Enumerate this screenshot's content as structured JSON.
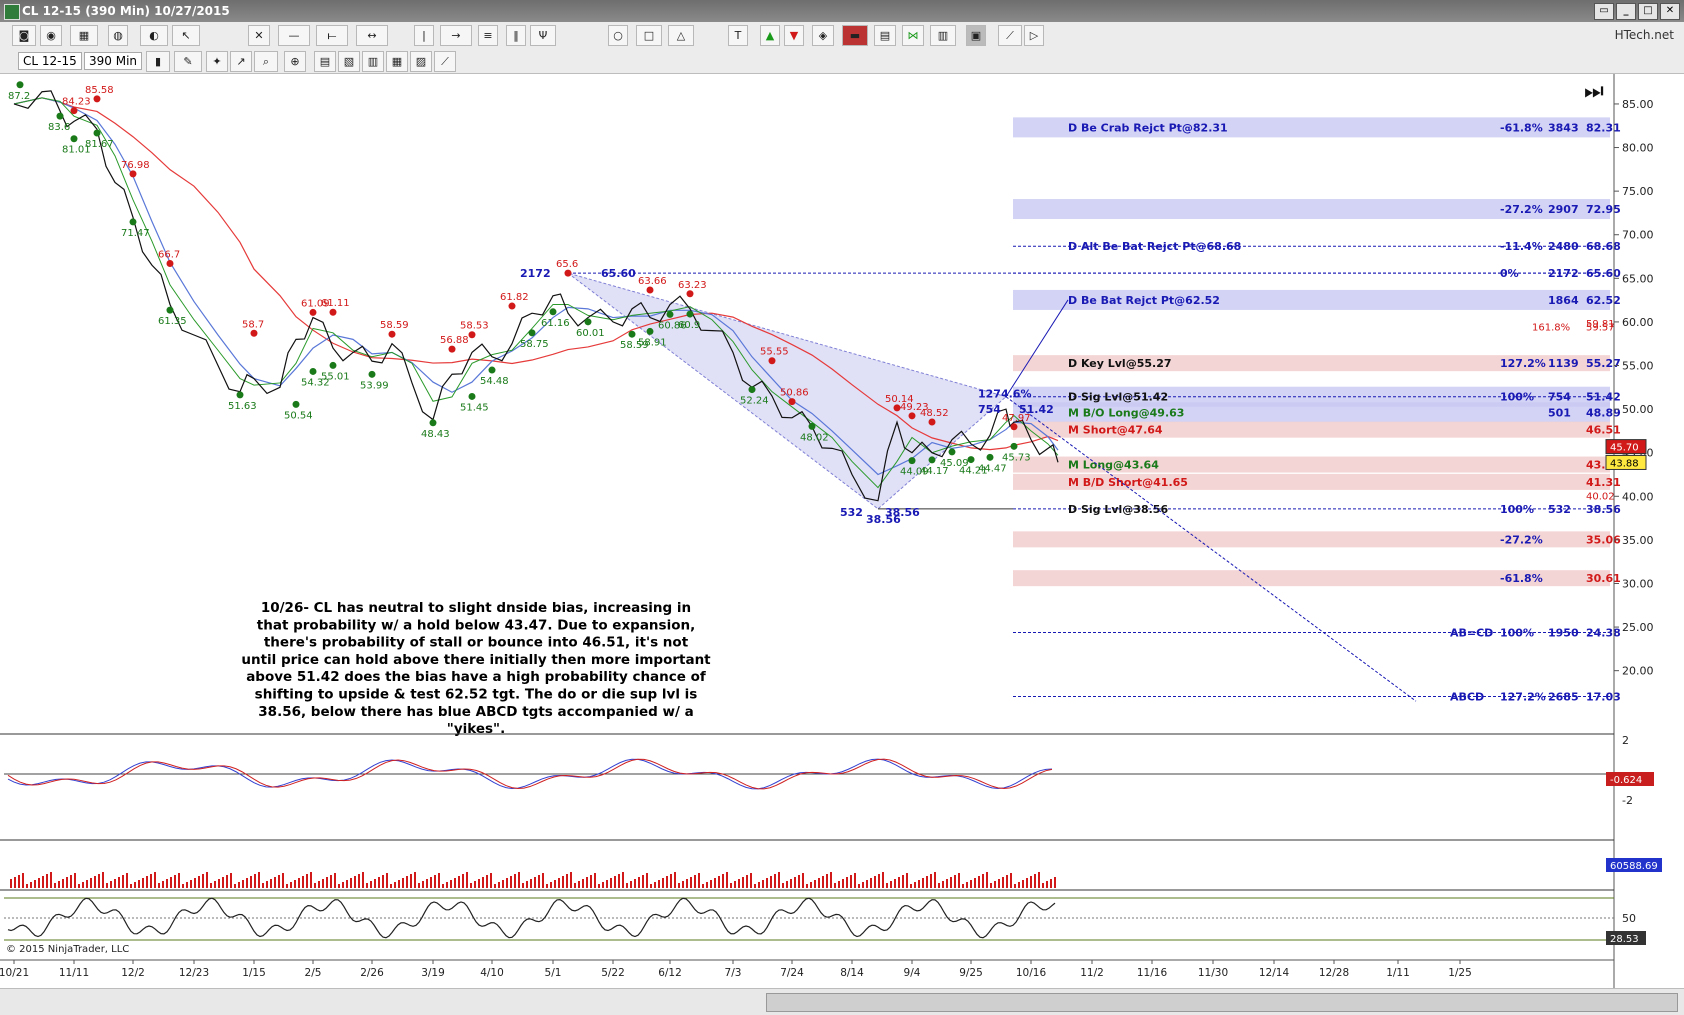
{
  "window": {
    "title": "CL 12-15 (390 Min)  10/27/2015"
  },
  "toolbar": {
    "brand": "HTech.net",
    "instrument": "CL 12-15",
    "period": "390 Min"
  },
  "colors": {
    "blue_zone": "#c8c8f2",
    "red_zone": "#f3d0d0",
    "blue_text": "#1919b4",
    "red_text": "#d21919",
    "green_text": "#1a7a1a",
    "ma_red": "#e63a3a",
    "ma_blue": "#5a78d8",
    "ma_green": "#2a9a2a"
  },
  "chart_data": {
    "type": "line",
    "title": "",
    "ylim": [
      15,
      88
    ],
    "y_ticks": [
      "85.00",
      "80.00",
      "75.00",
      "70.00",
      "65.00",
      "60.00",
      "55.00",
      "50.00",
      "45.00",
      "40.00",
      "35.00",
      "30.00",
      "25.00",
      "20.00"
    ],
    "x_ticks": [
      "10/21",
      "11/11",
      "12/2",
      "12/23",
      "1/15",
      "2/5",
      "2/26",
      "3/19",
      "4/10",
      "5/1",
      "5/22",
      "6/12",
      "7/3",
      "7/24",
      "8/14",
      "9/4",
      "9/25",
      "10/16",
      "11/2",
      "11/16",
      "11/30",
      "12/14",
      "12/28",
      "1/11",
      "1/25"
    ],
    "price_path": [
      {
        "x": "10/21",
        "y": 85.0
      },
      {
        "x": "10/28",
        "y": 86.4
      },
      {
        "x": "11/4",
        "y": 84.2
      },
      {
        "x": "11/11",
        "y": 83.0
      },
      {
        "x": "11/18",
        "y": 82.1
      },
      {
        "x": "11/25",
        "y": 76.0
      },
      {
        "x": "12/2",
        "y": 72.0
      },
      {
        "x": "12/9",
        "y": 66.5
      },
      {
        "x": "12/16",
        "y": 62.0
      },
      {
        "x": "12/23",
        "y": 58.5
      },
      {
        "x": "1/1",
        "y": 55.0
      },
      {
        "x": "1/8",
        "y": 52.0
      },
      {
        "x": "1/15",
        "y": 53.5
      },
      {
        "x": "1/23",
        "y": 52.5
      },
      {
        "x": "1/30",
        "y": 58.0
      },
      {
        "x": "2/5",
        "y": 60.5
      },
      {
        "x": "2/12",
        "y": 57.0
      },
      {
        "x": "2/19",
        "y": 56.5
      },
      {
        "x": "2/26",
        "y": 55.5
      },
      {
        "x": "3/5",
        "y": 57.5
      },
      {
        "x": "3/12",
        "y": 53.0
      },
      {
        "x": "3/19",
        "y": 48.8
      },
      {
        "x": "3/26",
        "y": 54.0
      },
      {
        "x": "4/2",
        "y": 56.5
      },
      {
        "x": "4/10",
        "y": 56.0
      },
      {
        "x": "4/17",
        "y": 57.5
      },
      {
        "x": "4/24",
        "y": 61.0
      },
      {
        "x": "5/1",
        "y": 63.0
      },
      {
        "x": "5/8",
        "y": 61.0
      },
      {
        "x": "5/15",
        "y": 60.5
      },
      {
        "x": "5/22",
        "y": 60.0
      },
      {
        "x": "5/29",
        "y": 61.5
      },
      {
        "x": "6/5",
        "y": 60.5
      },
      {
        "x": "6/12",
        "y": 62.0
      },
      {
        "x": "6/19",
        "y": 61.5
      },
      {
        "x": "6/26",
        "y": 59.0
      },
      {
        "x": "7/3",
        "y": 56.5
      },
      {
        "x": "7/10",
        "y": 52.5
      },
      {
        "x": "7/17",
        "y": 51.5
      },
      {
        "x": "7/24",
        "y": 49.0
      },
      {
        "x": "7/31",
        "y": 48.0
      },
      {
        "x": "8/7",
        "y": 45.5
      },
      {
        "x": "8/14",
        "y": 42.5
      },
      {
        "x": "8/21",
        "y": 39.5
      },
      {
        "x": "8/28",
        "y": 48.5
      },
      {
        "x": "9/4",
        "y": 45.0
      },
      {
        "x": "9/11",
        "y": 45.0
      },
      {
        "x": "9/18",
        "y": 46.5
      },
      {
        "x": "9/25",
        "y": 46.0
      },
      {
        "x": "10/2",
        "y": 47.0
      },
      {
        "x": "10/9",
        "y": 50.0
      },
      {
        "x": "10/12",
        "y": 48.5
      },
      {
        "x": "10/16",
        "y": 46.5
      },
      {
        "x": "10/23",
        "y": 45.5
      },
      {
        "x": "10/27",
        "y": 43.9
      }
    ],
    "levels": [
      {
        "label": "D Be Crab Rejct Pt@82.31",
        "pct": "-61.8%",
        "bars": "3843",
        "value": "82.31",
        "y": 82.31,
        "zone": "blue",
        "line": false
      },
      {
        "label": "",
        "pct": "-27.2%",
        "bars": "2907",
        "value": "72.95",
        "y": 72.95,
        "zone": "blue",
        "line": false
      },
      {
        "label": "D Alt Be Bat Rejct Pt@68.68",
        "pct": "-11.4%",
        "bars": "2480",
        "value": "68.68",
        "y": 68.68,
        "zone": "none",
        "line": true
      },
      {
        "label": "",
        "pct": "0%",
        "bars": "2172",
        "value": "65.60",
        "y": 65.6,
        "zone": "none",
        "line": true
      },
      {
        "label": "D Be Bat Rejct Pt@62.52",
        "pct": "",
        "bars": "1864",
        "value": "62.52",
        "y": 62.52,
        "zone": "blue",
        "line": false
      },
      {
        "label": "D Key Lvl@55.27",
        "pct": "127.2%",
        "bars": "1139",
        "value": "55.27",
        "y": 55.27,
        "zone": "red",
        "line": false
      },
      {
        "label": "D Sig Lvl@51.42",
        "pct": "100%",
        "bars": "754",
        "value": "51.42",
        "y": 51.42,
        "zone": "blue",
        "line": true
      },
      {
        "label": "M B/O Long@49.63",
        "pct": "",
        "bars": "501",
        "value": "48.89",
        "y": 49.63,
        "zone": "blue",
        "line": false
      },
      {
        "label": "M Short@47.64",
        "pct": "",
        "bars": "",
        "value": "46.51",
        "y": 47.64,
        "zone": "red",
        "line": false
      },
      {
        "label": "M Long@43.64",
        "pct": "",
        "bars": "",
        "value": "43.47",
        "y": 43.64,
        "zone": "red",
        "line": false
      },
      {
        "label": "M B/D Short@41.65",
        "pct": "",
        "bars": "",
        "value": "41.31",
        "y": 41.65,
        "zone": "red",
        "line": false
      },
      {
        "label": "D Sig Lvl@38.56",
        "pct": "100%",
        "bars": "532",
        "value": "38.56",
        "y": 38.56,
        "zone": "none",
        "line": true
      },
      {
        "label": "",
        "pct": "-27.2%",
        "bars": "",
        "value": "35.06",
        "y": 35.06,
        "zone": "red",
        "line": false
      },
      {
        "label": "",
        "pct": "-61.8%",
        "bars": "",
        "value": "30.61",
        "y": 30.61,
        "zone": "red",
        "line": false
      },
      {
        "label": "AB=CD",
        "pct": "100%",
        "bars": "1950",
        "value": "24.38",
        "y": 24.38,
        "zone": "none",
        "line": true
      },
      {
        "label": "ABCD",
        "pct": "127.2%",
        "bars": "2685",
        "value": "17.03",
        "y": 17.03,
        "zone": "none",
        "line": true
      }
    ],
    "extra_right_values": [
      "59.81",
      "59.57",
      "40.02"
    ],
    "extra_pcts": [
      "161.8%"
    ],
    "swing_labels": [
      {
        "x": "10/22",
        "y": 87.2,
        "text": "87.2",
        "color": "green"
      },
      {
        "x": "11/4",
        "y": 83.6,
        "text": "83.6",
        "color": "green"
      },
      {
        "x": "11/11",
        "y": 81.01,
        "text": "81.01",
        "color": "green"
      },
      {
        "x": "11/18",
        "y": 81.67,
        "text": "81.67",
        "color": "green"
      },
      {
        "x": "11/18",
        "y": 85.58,
        "text": "85.58",
        "color": "red"
      },
      {
        "x": "11/11",
        "y": 84.23,
        "text": "84.23",
        "color": "red"
      },
      {
        "x": "12/2",
        "y": 71.47,
        "text": "71.47",
        "color": "green"
      },
      {
        "x": "12/2",
        "y": 76.98,
        "text": "76.98",
        "color": "red"
      },
      {
        "x": "12/16",
        "y": 66.7,
        "text": "66.7",
        "color": "red"
      },
      {
        "x": "12/16",
        "y": 61.35,
        "text": "61.35",
        "color": "green"
      },
      {
        "x": "1/8",
        "y": 51.63,
        "text": "51.63",
        "color": "green"
      },
      {
        "x": "1/15",
        "y": 58.7,
        "text": "58.7",
        "color": "red"
      },
      {
        "x": "1/30",
        "y": 50.54,
        "text": "50.54",
        "color": "green"
      },
      {
        "x": "2/5",
        "y": 61.09,
        "text": "61.09",
        "color": "red"
      },
      {
        "x": "2/12",
        "y": 61.11,
        "text": "61.11",
        "color": "red"
      },
      {
        "x": "2/5",
        "y": 54.32,
        "text": "54.32",
        "color": "green"
      },
      {
        "x": "2/12",
        "y": 55.01,
        "text": "55.01",
        "color": "green"
      },
      {
        "x": "2/26",
        "y": 53.99,
        "text": "53.99",
        "color": "green"
      },
      {
        "x": "3/5",
        "y": 58.59,
        "text": "58.59",
        "color": "red"
      },
      {
        "x": "3/19",
        "y": 48.43,
        "text": "48.43",
        "color": "green"
      },
      {
        "x": "3/26",
        "y": 56.88,
        "text": "56.88",
        "color": "red"
      },
      {
        "x": "4/2",
        "y": 58.53,
        "text": "58.53",
        "color": "red"
      },
      {
        "x": "4/2",
        "y": 51.45,
        "text": "51.45",
        "color": "green"
      },
      {
        "x": "4/10",
        "y": 54.48,
        "text": "54.48",
        "color": "green"
      },
      {
        "x": "4/17",
        "y": 61.82,
        "text": "61.82",
        "color": "red"
      },
      {
        "x": "4/24",
        "y": 58.75,
        "text": "58.75",
        "color": "green"
      },
      {
        "x": "5/1",
        "y": 61.16,
        "text": "61.16",
        "color": "green"
      },
      {
        "x": "5/8",
        "y": 65.6,
        "text": "65.6",
        "color": "red"
      },
      {
        "x": "5/15",
        "y": 60.01,
        "text": "60.01",
        "color": "green"
      },
      {
        "x": "5/29",
        "y": 58.59,
        "text": "58.59",
        "color": "green"
      },
      {
        "x": "6/5",
        "y": 58.91,
        "text": "58.91",
        "color": "green"
      },
      {
        "x": "6/5",
        "y": 63.66,
        "text": "63.66",
        "color": "red"
      },
      {
        "x": "6/19",
        "y": 63.23,
        "text": "63.23",
        "color": "red"
      },
      {
        "x": "6/12",
        "y": 60.86,
        "text": "60.86",
        "color": "green"
      },
      {
        "x": "6/19",
        "y": 60.9,
        "text": "60.9",
        "color": "green"
      },
      {
        "x": "7/10",
        "y": 52.24,
        "text": "52.24",
        "color": "green"
      },
      {
        "x": "7/17",
        "y": 55.55,
        "text": "55.55",
        "color": "red"
      },
      {
        "x": "7/24",
        "y": 50.86,
        "text": "50.86",
        "color": "red"
      },
      {
        "x": "7/31",
        "y": 48.02,
        "text": "48.02",
        "color": "green"
      },
      {
        "x": "8/28",
        "y": 50.14,
        "text": "50.14",
        "color": "red"
      },
      {
        "x": "9/4",
        "y": 49.23,
        "text": "49.23",
        "color": "red"
      },
      {
        "x": "9/11",
        "y": 48.52,
        "text": "48.52",
        "color": "red"
      },
      {
        "x": "9/4",
        "y": 44.09,
        "text": "44.09",
        "color": "green"
      },
      {
        "x": "9/11",
        "y": 44.17,
        "text": "44.17",
        "color": "green"
      },
      {
        "x": "9/18",
        "y": 45.09,
        "text": "45.09",
        "color": "green"
      },
      {
        "x": "9/25",
        "y": 44.21,
        "text": "44.21",
        "color": "green"
      },
      {
        "x": "10/2",
        "y": 44.47,
        "text": "44.47",
        "color": "green"
      },
      {
        "x": "10/12",
        "y": 47.97,
        "text": "47.97",
        "color": "red"
      },
      {
        "x": "10/12",
        "y": 45.73,
        "text": "45.73",
        "color": "green"
      }
    ],
    "pattern_labels": [
      {
        "x": "4/24",
        "y": 65.6,
        "text": "2172"
      },
      {
        "x": "5/22",
        "y": 65.6,
        "text": "65.60"
      },
      {
        "x": "8/14",
        "y": 38.2,
        "text": "532"
      },
      {
        "x": "8/28",
        "y": 38.2,
        "text": "38.56"
      },
      {
        "x": "10/2",
        "y": 50.0,
        "text": "754"
      },
      {
        "x": "10/16",
        "y": 50.0,
        "text": "51.42"
      },
      {
        "x": "10/2",
        "y": 51.8,
        "text": "1274.6%"
      },
      {
        "x": "8/21",
        "y": 37.4,
        "text": "38.56"
      }
    ],
    "annotation": "10/26- CL has neutral to slight dnside bias, increasing in that probability w/ a hold below 43.47.  Due to expansion, there's probability of stall or bounce into 46.51, it's not until price can hold above there initially then more important above 51.42 does the bias have a high probability chance of shifting to upside & test 62.52 tgt.  The do or die sup lvl is 38.56, below there has blue ABCD tgts accompanied w/ a \"yikes\".",
    "price_badges": [
      "45.70",
      "43.88"
    ],
    "panels": [
      {
        "name": "oscillator",
        "ticks": [
          "2",
          "-2"
        ],
        "last_value": "-0.624"
      },
      {
        "name": "volume",
        "last_value": "60588.69"
      },
      {
        "name": "stochastic",
        "ticks": [
          "50"
        ],
        "last_value": "28.53"
      }
    ],
    "copyright": "© 2015 NinjaTrader, LLC"
  }
}
